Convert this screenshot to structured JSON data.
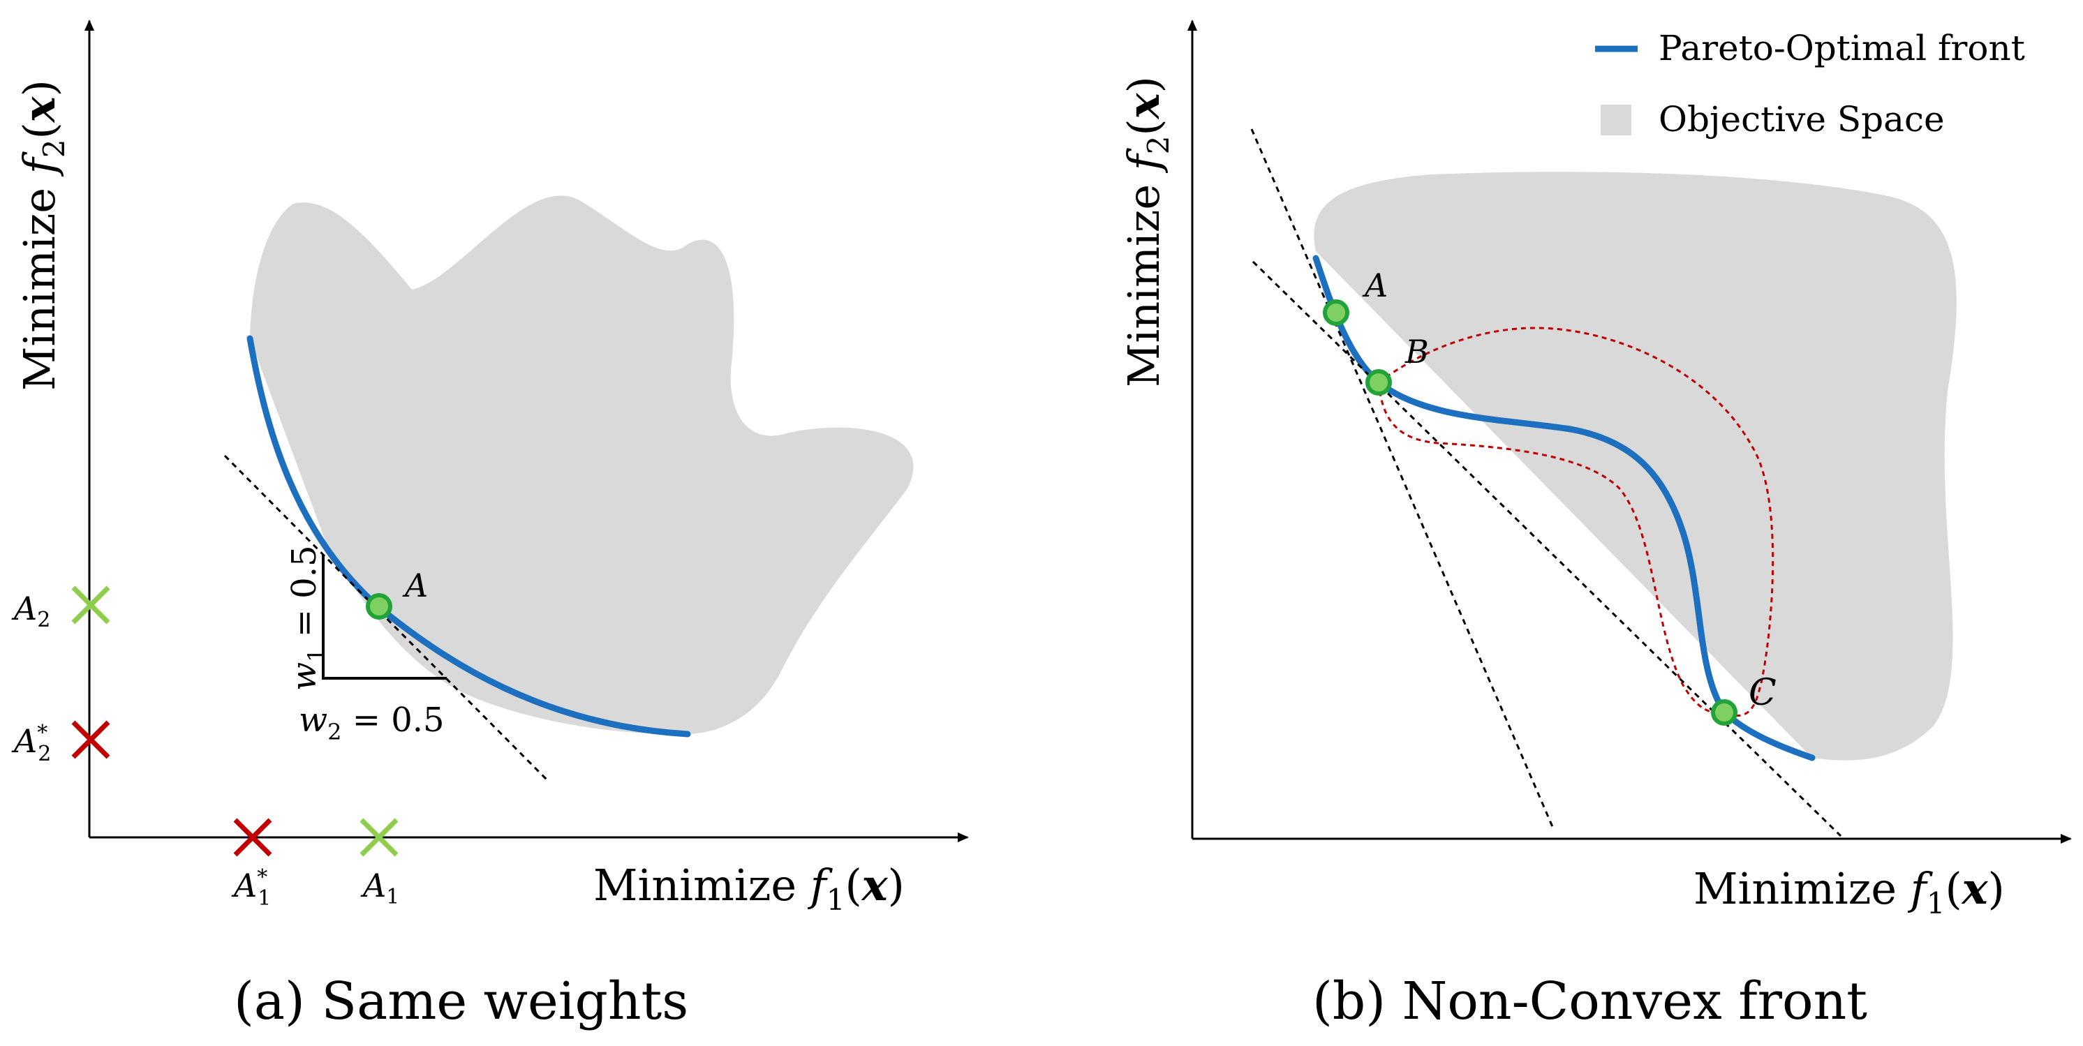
{
  "panel_a": {
    "caption": "(a) Same weights",
    "x_axis": {
      "word": "Minimize",
      "fn": "f",
      "sub": "1",
      "arg": "x"
    },
    "y_axis": {
      "word": "Minimize",
      "fn": "f",
      "sub": "2",
      "arg": "x"
    },
    "point_label": "A",
    "weight_1": {
      "sym": "w",
      "sub": "1",
      "eq": " = 0.5"
    },
    "weight_2": {
      "sym": "w",
      "sub": "2",
      "eq": " = 0.5"
    },
    "marker_A1": {
      "sym": "A",
      "sub": "1"
    },
    "marker_A1_star": {
      "sym": "A",
      "sub": "1",
      "sup": "*"
    },
    "marker_A2": {
      "sym": "A",
      "sub": "2"
    },
    "marker_A2_star": {
      "sym": "A",
      "sub": "2",
      "sup": "*"
    }
  },
  "panel_b": {
    "caption": "(b) Non-Convex front",
    "x_axis": {
      "word": "Minimize",
      "fn": "f",
      "sub": "1",
      "arg": "x"
    },
    "y_axis": {
      "word": "Minimize",
      "fn": "f",
      "sub": "2",
      "arg": "x"
    },
    "point_A": "A",
    "point_B": "B",
    "point_C": "C"
  },
  "legend": {
    "pareto": "Pareto-Optimal front",
    "objective": "Objective Space"
  },
  "colors": {
    "pareto_front": "#1d6fc0",
    "objective_space": "#d9d9d9",
    "point_fill": "#7ed061",
    "point_stroke": "#22a33a",
    "good_marker": "#8fcd4c",
    "bad_marker": "#c00000",
    "dashed_red": "#c00000"
  }
}
